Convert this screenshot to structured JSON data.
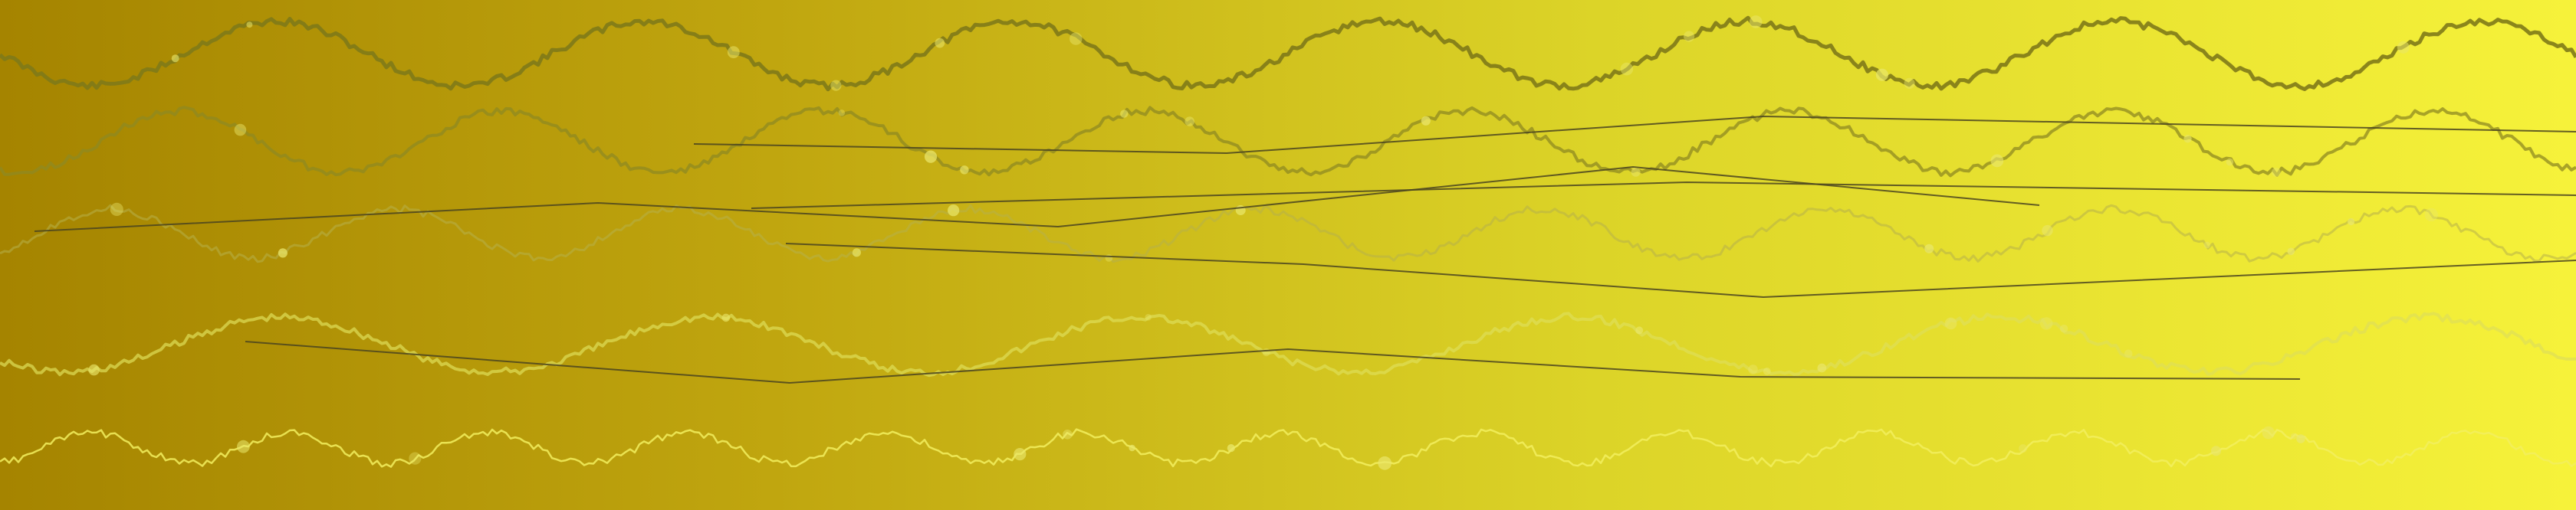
{
  "background": {
    "gradient_colors": [
      "#a58400",
      "#c0a60f",
      "#dcd428",
      "#f6f23a"
    ]
  },
  "waves": [
    {
      "name": "wave-1",
      "stroke": "#7f7a18",
      "opacity": 0.9,
      "width": 5,
      "cycles": 7,
      "seed": 11
    },
    {
      "name": "wave-2",
      "stroke": "#8f8a22",
      "opacity": 0.75,
      "width": 4,
      "cycles": 8,
      "seed": 23
    },
    {
      "name": "wave-3",
      "stroke": "#b7b04a",
      "opacity": 0.55,
      "width": 3,
      "cycles": 9,
      "seed": 37
    },
    {
      "name": "wave-4",
      "stroke": "#dede58",
      "opacity": 0.7,
      "width": 4,
      "cycles": 6,
      "seed": 41
    },
    {
      "name": "wave-5",
      "stroke": "#f2ee5e",
      "opacity": 0.85,
      "width": 2.5,
      "cycles": 13,
      "seed": 53
    }
  ],
  "line_color": "#4a4420",
  "dot_color": "#e9e66a",
  "icons": [
    "wave-line-icon",
    "polyline-icon",
    "dot-icon"
  ]
}
